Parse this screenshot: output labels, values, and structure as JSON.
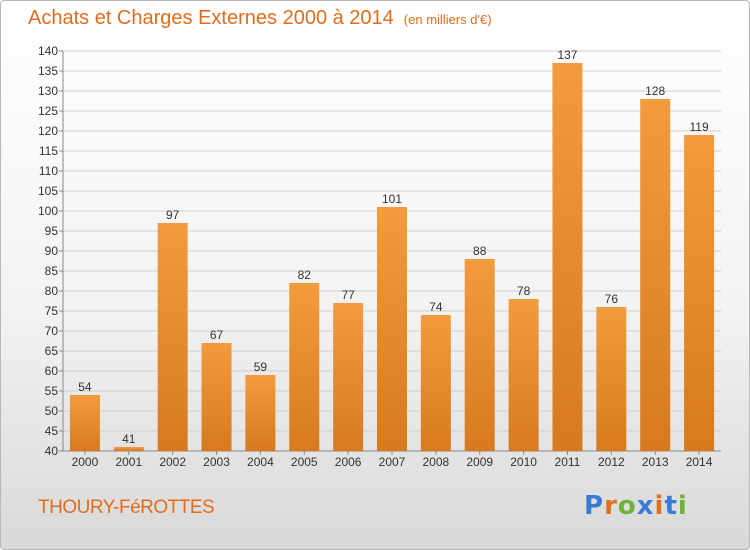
{
  "title": "Achats et Charges Externes 2000 à 2014",
  "subtitle": "(en milliers d'€)",
  "commune": "THOURY-FéROTTES",
  "logo": {
    "letters": [
      "P",
      "r",
      "o",
      "x",
      "i",
      "t",
      "i"
    ],
    "colors": [
      "#3a7bd5",
      "#e0701f",
      "#6bb33a",
      "#3a7bd5",
      "#e0701f",
      "#3a7bd5",
      "#6bb33a"
    ]
  },
  "colors": {
    "bar": "#f39b3f",
    "bar_dark": "#d77a1f",
    "title": "#e06d1e",
    "grid": "#cfcfcf"
  },
  "chart_data": {
    "type": "bar",
    "title": "Achats et Charges Externes 2000 à 2014",
    "subtitle": "(en milliers d'€)",
    "categories": [
      "2000",
      "2001",
      "2002",
      "2003",
      "2004",
      "2005",
      "2006",
      "2007",
      "2008",
      "2009",
      "2010",
      "2011",
      "2012",
      "2013",
      "2014"
    ],
    "values": [
      54,
      41,
      97,
      67,
      59,
      82,
      77,
      101,
      74,
      88,
      78,
      137,
      76,
      128,
      119
    ],
    "ylim": [
      40,
      140
    ],
    "yticks": [
      40,
      45,
      50,
      55,
      60,
      65,
      70,
      75,
      80,
      85,
      90,
      95,
      100,
      105,
      110,
      115,
      120,
      125,
      130,
      135,
      140
    ],
    "grid": true,
    "xlabel": "",
    "ylabel": ""
  }
}
